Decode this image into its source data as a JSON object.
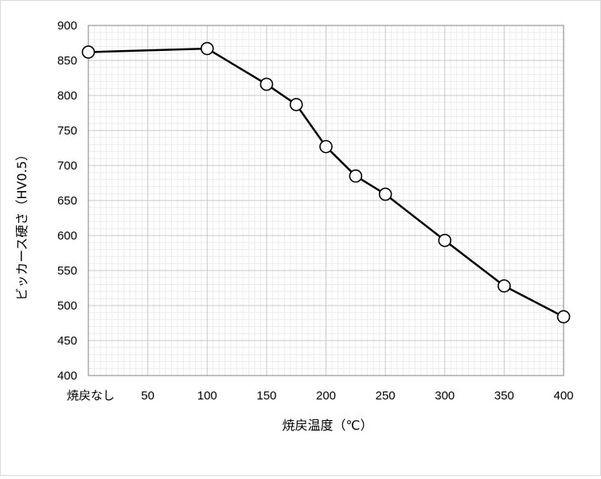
{
  "chart_data": {
    "type": "line",
    "title": "",
    "xlabel": "焼戻温度（℃）",
    "ylabel": "ビッカース硬さ（HV0.5）",
    "xlim": [
      0,
      400
    ],
    "ylim": [
      400,
      900
    ],
    "x_ticks": [
      {
        "value": 0,
        "label": "焼戻なし"
      },
      {
        "value": 50,
        "label": "50"
      },
      {
        "value": 100,
        "label": "100"
      },
      {
        "value": 150,
        "label": "150"
      },
      {
        "value": 200,
        "label": "200"
      },
      {
        "value": 250,
        "label": "250"
      },
      {
        "value": 300,
        "label": "300"
      },
      {
        "value": 350,
        "label": "350"
      },
      {
        "value": 400,
        "label": "400"
      }
    ],
    "y_ticks": [
      400,
      450,
      500,
      550,
      600,
      650,
      700,
      750,
      800,
      850,
      900
    ],
    "grid": true,
    "legend": "none",
    "series": [
      {
        "color": "#000000",
        "marker": "open-circle",
        "x": [
          0,
          100,
          150,
          175,
          200,
          225,
          250,
          300,
          350,
          400
        ],
        "y": [
          862,
          867,
          816,
          787,
          727,
          685,
          659,
          593,
          528,
          484
        ]
      }
    ]
  }
}
